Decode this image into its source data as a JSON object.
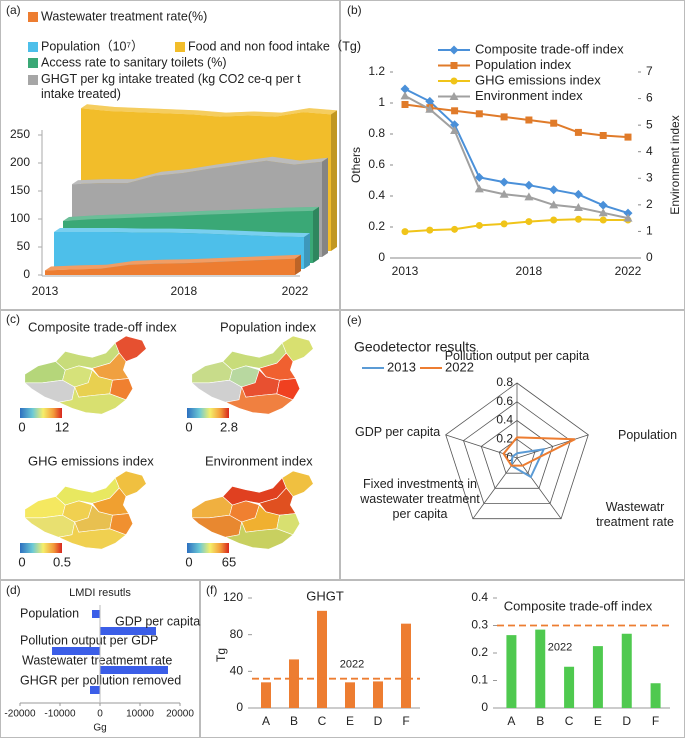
{
  "panel_labels": [
    "(a)",
    "(b)",
    "(c)",
    "(e)",
    "(d)",
    "(f)"
  ],
  "chart_data": [
    {
      "type": "area3d",
      "x": [
        2013,
        2014,
        2015,
        2016,
        2017,
        2018,
        2019,
        2020,
        2021,
        2022
      ],
      "xlim": [
        2013,
        2022
      ],
      "xticks": [
        2013,
        2018,
        2022
      ],
      "ylim": [
        0,
        250
      ],
      "yticks": [
        0,
        50,
        100,
        150,
        200,
        250
      ],
      "series": [
        {
          "name": "Wastewater treatment rate(%)",
          "color": "#ed7d31",
          "values": [
            8,
            10,
            11,
            18,
            20,
            21,
            23,
            25,
            27,
            29
          ]
        },
        {
          "name": "Population（10⁷）",
          "color": "#4dbfea",
          "values": [
            66,
            66,
            66,
            65,
            65,
            64,
            62,
            60,
            58,
            57
          ]
        },
        {
          "name": "Food and non food intake（Tg)",
          "color": "#f2bd2a",
          "values": [
            255,
            250,
            248,
            246,
            244,
            240,
            242,
            240,
            248,
            244
          ]
        },
        {
          "name": "Access rate to sanitary toilets (%)",
          "color": "#3aa876",
          "values": [
            75,
            78,
            80,
            82,
            84,
            86,
            88,
            90,
            92,
            93
          ]
        },
        {
          "name": "GHGT  per kg intake treated (kg CO2 ce-q per t intake treated)",
          "color": "#a6a6a6",
          "values": [
            130,
            132,
            132,
            145,
            150,
            158,
            165,
            172,
            165,
            170
          ]
        }
      ]
    },
    {
      "type": "line",
      "x": [
        2013,
        2014,
        2015,
        2016,
        2017,
        2018,
        2019,
        2020,
        2021,
        2022
      ],
      "xlim": [
        2013,
        2022
      ],
      "xticks": [
        2013,
        2018,
        2022
      ],
      "ylim": [
        0,
        1.2
      ],
      "yticks": [
        0,
        0.2,
        0.4,
        0.6,
        0.8,
        1,
        1.2
      ],
      "y2lim": [
        0,
        7
      ],
      "y2ticks": [
        0,
        1,
        2,
        3,
        4,
        5,
        6,
        7
      ],
      "ylabel": "Others",
      "y2label": "Environment index",
      "series": [
        {
          "name": "Composite trade-off index",
          "color": "#4a90d9",
          "marker": "diamond",
          "values": [
            1.09,
            1.01,
            0.86,
            0.52,
            0.49,
            0.47,
            0.44,
            0.41,
            0.34,
            0.29
          ]
        },
        {
          "name": "Population index",
          "color": "#e07b2a",
          "marker": "square",
          "values": [
            0.99,
            0.97,
            0.95,
            0.93,
            0.91,
            0.89,
            0.87,
            0.81,
            0.79,
            0.78
          ]
        },
        {
          "name": "GHG emissions index",
          "color": "#f0c419",
          "marker": "circle",
          "values": [
            0.17,
            0.18,
            0.185,
            0.21,
            0.22,
            0.235,
            0.245,
            0.25,
            0.245,
            0.245
          ]
        },
        {
          "name": "Environment index",
          "color": "#a0a0a0",
          "marker": "triangle",
          "axis": "y2",
          "values": [
            6.1,
            5.6,
            4.8,
            2.6,
            2.4,
            2.3,
            2.0,
            1.9,
            1.7,
            1.5
          ]
        }
      ]
    },
    {
      "type": "choropleth",
      "maps": [
        {
          "title": "Composite trade-off index",
          "cbar_ticks": [
            0,
            12
          ]
        },
        {
          "title": "Population index",
          "cbar_ticks": [
            0,
            2.8
          ]
        },
        {
          "title": "GHG  emissions index",
          "cbar_ticks": [
            0,
            0.5
          ]
        },
        {
          "title": "Environment index",
          "cbar_ticks": [
            0,
            65
          ]
        }
      ]
    },
    {
      "type": "radar",
      "title": "Geodetector results",
      "axes": [
        "Pollution output per capita",
        "Population",
        "Wastewatr treatment rate",
        "Fixed investments in wastewater treatment per capita",
        "GDP per capita"
      ],
      "rlim": [
        0,
        0.8
      ],
      "rticks": [
        0,
        0.2,
        0.4,
        0.6,
        0.8
      ],
      "series": [
        {
          "name": "2013",
          "color": "#5b9bd5",
          "values": [
            0.05,
            0.3,
            0.25,
            0.1,
            0.05
          ]
        },
        {
          "name": "2022",
          "color": "#ed7d31",
          "values": [
            0.22,
            0.65,
            0.1,
            0.1,
            0.15
          ]
        }
      ]
    },
    {
      "type": "hbar",
      "title": "LMDI resutls",
      "xlabel": "Gg",
      "color": "#3b5ee8",
      "categories": [
        "Population",
        "GDP per capita",
        "Pollution output per GDP",
        "Wastewater treatmemt rate",
        "GHGR  per pollution removed"
      ],
      "values": [
        -2000,
        14000,
        -12000,
        17000,
        -2500
      ],
      "xlim": [
        -20000,
        20000
      ],
      "xticks": [
        -20000,
        -10000,
        0,
        10000,
        20000
      ]
    },
    {
      "type": "bar",
      "title": "GHGT",
      "ylabel": "Tg",
      "color": "#ed7d31",
      "categories": [
        "A",
        "B",
        "C",
        "E",
        "D",
        "F"
      ],
      "values": [
        28,
        53,
        106,
        28,
        29,
        92
      ],
      "ylim": [
        0,
        120
      ],
      "yticks": [
        0,
        40,
        80,
        120
      ],
      "reference": 32,
      "reference_label": "2022",
      "reference_color": "#ed7d31"
    },
    {
      "type": "bar",
      "title": "Composite trade-off index",
      "color": "#4fc94f",
      "categories": [
        "A",
        "B",
        "C",
        "E",
        "D",
        "F"
      ],
      "values": [
        0.265,
        0.285,
        0.15,
        0.225,
        0.27,
        0.09
      ],
      "ylim": [
        0,
        0.4
      ],
      "yticks": [
        0,
        0.1,
        0.2,
        0.3,
        0.4
      ],
      "reference": 0.3,
      "reference_label": "2022",
      "reference_color": "#ed7d31"
    }
  ]
}
